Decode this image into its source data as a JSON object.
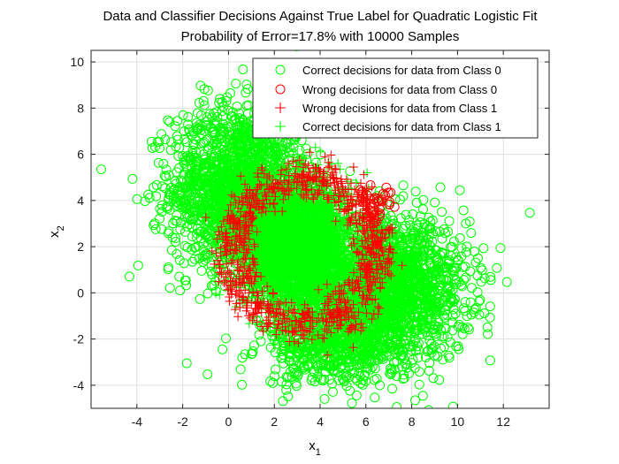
{
  "chart_data": {
    "type": "scatter",
    "title": "Data and Classifier Decisions Against True Label for Quadratic Logistic Fit",
    "subtitle": "Probability of Error=17.8% with 10000 Samples",
    "xlabel": "x",
    "xlabel_sub": "1",
    "ylabel": "x",
    "ylabel_sub": "2",
    "xlim": [
      -6,
      14
    ],
    "ylim": [
      -5,
      10.5
    ],
    "xticks": [
      -4,
      -2,
      0,
      2,
      4,
      6,
      8,
      10,
      12
    ],
    "yticks": [
      -4,
      -2,
      0,
      2,
      4,
      6,
      8,
      10
    ],
    "grid": true,
    "legend_position": "top-right",
    "series": [
      {
        "name": "Correct decisions for data from Class 0",
        "marker": "circle",
        "color": "#00ff00"
      },
      {
        "name": "Wrong decisions for data from Class 0",
        "marker": "circle",
        "color": "#ff0000"
      },
      {
        "name": "Wrong decisions for data from Class 1",
        "marker": "plus",
        "color": "#ff0000"
      },
      {
        "name": "Correct decisions for data from Class 1",
        "marker": "plus",
        "color": "#00ff00"
      }
    ],
    "approximate_clusters": [
      {
        "series": 0,
        "description": "upper-left class 0 cluster",
        "center": [
          0.5,
          4.5
        ],
        "spread": [
          1.5,
          1.8
        ],
        "count": 1800
      },
      {
        "series": 0,
        "description": "lower-right class 0 cluster",
        "center": [
          7.0,
          0.2
        ],
        "spread": [
          1.7,
          1.5
        ],
        "count": 1800
      },
      {
        "series": 0,
        "description": "lower-middle class 0 points",
        "center": [
          4.5,
          -2.2
        ],
        "spread": [
          1.5,
          0.9
        ],
        "count": 600
      },
      {
        "series": 3,
        "description": "central class 1 cluster",
        "center": [
          3.0,
          2.0
        ],
        "spread": [
          1.1,
          1.3
        ],
        "count": 4200
      },
      {
        "series": 2,
        "description": "class 1 points misclassified on the decision ring",
        "ring_center": [
          3.3,
          1.8
        ],
        "ring_radius": [
          3.0,
          3.0
        ],
        "count": 900
      },
      {
        "series": 1,
        "description": "class 0 points misclassified inside the ring",
        "center": [
          6.5,
          3.5
        ],
        "spread": [
          0.5,
          0.5
        ],
        "count": 40
      }
    ]
  }
}
